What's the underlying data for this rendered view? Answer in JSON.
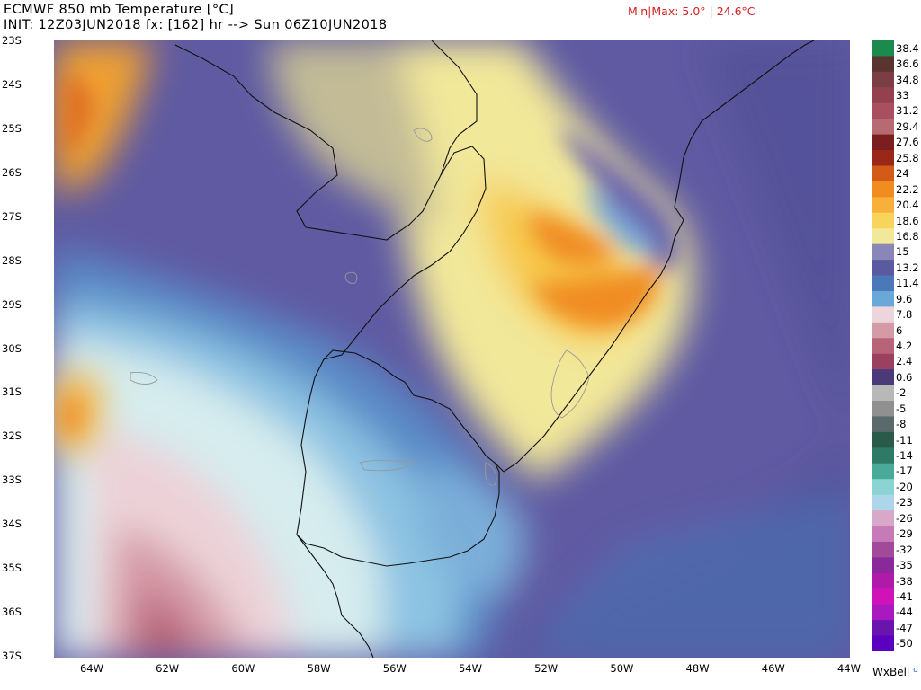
{
  "header": {
    "title": "ECMWF 850 mb Temperature [°C]",
    "subtitle": "INIT: 12Z03JUN2018 fx: [162] hr --> Sun 06Z10JUN2018",
    "minmax": "Min|Max: 5.0° | 24.6°C"
  },
  "map": {
    "lat_labels": [
      "23S",
      "24S",
      "25S",
      "26S",
      "27S",
      "28S",
      "29S",
      "30S",
      "31S",
      "32S",
      "33S",
      "34S",
      "35S",
      "36S",
      "37S"
    ],
    "lon_labels": [
      "64W",
      "62W",
      "60W",
      "58W",
      "56W",
      "54W",
      "52W",
      "50W",
      "48W",
      "46W",
      "44W"
    ],
    "extent": {
      "west": -65,
      "east": -44,
      "south": -37,
      "north": -23
    }
  },
  "colorbar": {
    "labels": [
      "38.4",
      "36.6",
      "34.8",
      "33",
      "31.2",
      "29.4",
      "27.6",
      "25.8",
      "24",
      "22.2",
      "20.4",
      "18.6",
      "16.8",
      "15",
      "13.2",
      "11.4",
      "9.6",
      "7.8",
      "6",
      "4.2",
      "2.4",
      "0.6",
      "-2",
      "-5",
      "-8",
      "-11",
      "-14",
      "-17",
      "-20",
      "-23",
      "-26",
      "-29",
      "-32",
      "-35",
      "-38",
      "-41",
      "-44",
      "-47",
      "-50"
    ],
    "colors": [
      "#1c8a4c",
      "#5a3530",
      "#7a3e44",
      "#93414e",
      "#a85060",
      "#b86a72",
      "#7a1e1e",
      "#9a2818",
      "#d45a18",
      "#f08c20",
      "#f7b03a",
      "#f9d45a",
      "#f2e89a",
      "#8a86b8",
      "#5a5aa0",
      "#4a78b8",
      "#6aa8d8",
      "#ecd6dc",
      "#d49aa6",
      "#b86478",
      "#9a4060",
      "#4a3a7a",
      "#b8b8b8",
      "#909090",
      "#5a6a6a",
      "#2a5a4a",
      "#2e7a66",
      "#4aaa9a",
      "#8ad4d4",
      "#aed6ea",
      "#d8a8c8",
      "#c67ab8",
      "#a24a9a",
      "#8a2a9a",
      "#b01aa8",
      "#d012b8",
      "#a81ac0",
      "#6a14b0",
      "#5a00c0"
    ]
  },
  "brand": "WxBell"
}
